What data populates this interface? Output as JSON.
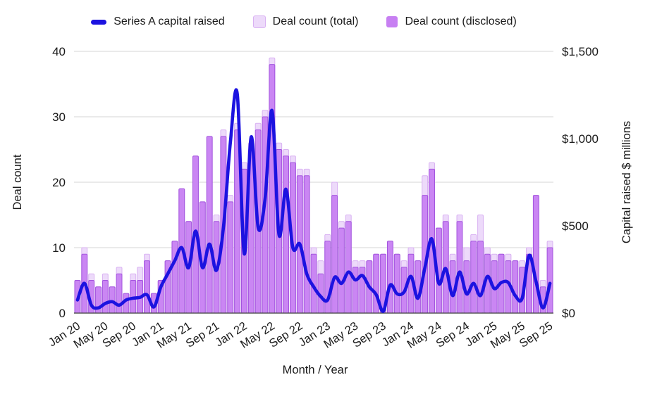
{
  "legend": {
    "items": [
      {
        "label": "Series A capital raised",
        "type": "line",
        "color": "#1c13e0"
      },
      {
        "label": "Deal count (total)",
        "type": "bar",
        "color": "#eddafa"
      },
      {
        "label": "Deal count (disclosed)",
        "type": "bar",
        "color": "#c77ff2"
      }
    ]
  },
  "axes": {
    "left": {
      "title": "Deal count",
      "ticks": [
        "0",
        "10",
        "20",
        "30",
        "40"
      ],
      "range": [
        0,
        40
      ]
    },
    "right": {
      "title": "Capital raised $ millions",
      "ticks": [
        "$0",
        "$500",
        "$1,000",
        "$1,500"
      ],
      "range": [
        0,
        1500
      ]
    },
    "x": {
      "title": "Month / Year",
      "shown_tick_every": 4
    }
  },
  "chart_data": {
    "type": "combo-bar-line",
    "categories": [
      "Jan 20",
      "Feb 20",
      "Mar 20",
      "Apr 20",
      "May 20",
      "Jun 20",
      "Jul 20",
      "Aug 20",
      "Sep 20",
      "Oct 20",
      "Nov 20",
      "Dec 20",
      "Jan 21",
      "Feb 21",
      "Mar 21",
      "Apr 21",
      "May 21",
      "Jun 21",
      "Jul 21",
      "Aug 21",
      "Sep 21",
      "Oct 21",
      "Nov 21",
      "Dec 21",
      "Jan 22",
      "Feb 22",
      "Mar 22",
      "Apr 22",
      "May 22",
      "Jun 22",
      "Jul 22",
      "Aug 22",
      "Sep 22",
      "Oct 22",
      "Nov 22",
      "Dec 22",
      "Jan 23",
      "Feb 23",
      "Mar 23",
      "Apr 23",
      "May 23",
      "Jun 23",
      "Jul 23",
      "Aug 23",
      "Sep 23",
      "Oct 23",
      "Nov 23",
      "Dec 23",
      "Jan 24",
      "Feb 24",
      "Mar 24",
      "Apr 24",
      "May 24",
      "Jun 24",
      "Jul 24",
      "Aug 24",
      "Sep 24",
      "Oct 24",
      "Nov 24",
      "Dec 24",
      "Jan 25",
      "Feb 25",
      "Mar 25",
      "Apr 25",
      "May 25",
      "Jun 25",
      "Jul 25",
      "Aug 25",
      "Sep 25"
    ],
    "x_tick_labels": [
      "Jan 20",
      "May 20",
      "Sep 20",
      "Jan 21",
      "May 21",
      "Sep 21",
      "Jan 22",
      "May 22",
      "Sep 22",
      "Jan 23",
      "May 23",
      "Sep 23",
      "Jan 24",
      "May 24",
      "Sep 24",
      "Jan 25",
      "May 25",
      "Sep 25"
    ],
    "series": [
      {
        "name": "Deal count (total)",
        "type": "bar",
        "axis": "left",
        "values": [
          5,
          10,
          6,
          4,
          6,
          4,
          7,
          3,
          6,
          7,
          9,
          3,
          5,
          8,
          11,
          19,
          14,
          24,
          17,
          27,
          15,
          28,
          18,
          29,
          23,
          26,
          29,
          31,
          39,
          26,
          25,
          24,
          22,
          22,
          10,
          8,
          12,
          20,
          14,
          15,
          8,
          8,
          8,
          9,
          9,
          11,
          9,
          8,
          10,
          8,
          21,
          23,
          13,
          15,
          9,
          15,
          10,
          12,
          15,
          10,
          9,
          9,
          9,
          8,
          8,
          10,
          18,
          5,
          11
        ]
      },
      {
        "name": "Deal count (disclosed)",
        "type": "bar",
        "axis": "left",
        "values": [
          5,
          9,
          5,
          4,
          5,
          4,
          6,
          3,
          5,
          5,
          8,
          3,
          5,
          8,
          11,
          19,
          14,
          24,
          17,
          27,
          14,
          27,
          17,
          28,
          22,
          25,
          28,
          30,
          38,
          25,
          24,
          23,
          21,
          21,
          9,
          6,
          11,
          18,
          13,
          14,
          7,
          7,
          8,
          9,
          9,
          11,
          9,
          7,
          9,
          8,
          18,
          22,
          13,
          14,
          8,
          14,
          8,
          11,
          11,
          9,
          8,
          9,
          8,
          8,
          7,
          9,
          18,
          4,
          10
        ]
      },
      {
        "name": "Series A capital raised",
        "type": "line",
        "axis": "right",
        "unit": "$ millions",
        "values": [
          75,
          170,
          45,
          30,
          55,
          65,
          45,
          75,
          85,
          90,
          105,
          35,
          150,
          225,
          300,
          375,
          260,
          470,
          260,
          395,
          245,
          490,
          975,
          1255,
          340,
          1010,
          490,
          655,
          1160,
          450,
          710,
          375,
          395,
          225,
          150,
          95,
          75,
          205,
          170,
          235,
          190,
          215,
          150,
          105,
          10,
          160,
          110,
          120,
          210,
          85,
          260,
          425,
          170,
          255,
          100,
          235,
          110,
          170,
          100,
          210,
          140,
          175,
          175,
          100,
          85,
          330,
          180,
          30,
          170
        ]
      }
    ],
    "grid": true,
    "legend_position": "top"
  },
  "colors": {
    "line": "#1c13e0",
    "bar_total_fill": "#eddafa",
    "bar_total_stroke": "#d9b2f2",
    "bar_disclosed_fill": "#c77ff2",
    "bar_disclosed_stroke": "#a355de",
    "gridline": "#d6d6d6",
    "baseline": "#4d4d4d",
    "text": "#1a1a1a"
  }
}
